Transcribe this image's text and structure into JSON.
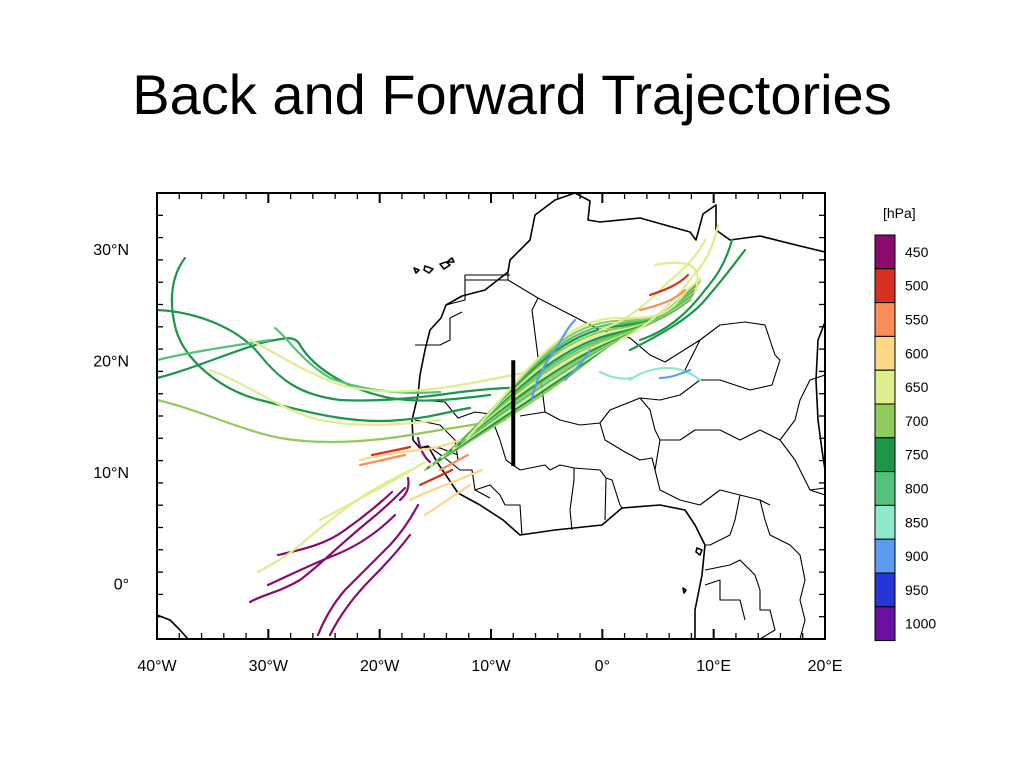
{
  "slide": {
    "title": "Back and Forward Trajectories"
  },
  "colors": {
    "450": "#8c0a6e",
    "500": "#d7301f",
    "550": "#fc8d59",
    "600": "#fdd884",
    "650": "#dfee8c",
    "700": "#8ecb5b",
    "750": "#1b9748",
    "800": "#53c27a",
    "850": "#8ee9cc",
    "900": "#5b9bf0",
    "950": "#2436d6",
    "1000": "#6a0fa1"
  },
  "map": {
    "extent": {
      "lon": [
        -40,
        20
      ],
      "lat": [
        -5,
        35
      ]
    },
    "x_ticks": [
      {
        "lon": -40,
        "label": "40°W"
      },
      {
        "lon": -30,
        "label": "30°W"
      },
      {
        "lon": -20,
        "label": "20°W"
      },
      {
        "lon": -10,
        "label": "10°W"
      },
      {
        "lon": 0,
        "label": "0°"
      },
      {
        "lon": 10,
        "label": "10°E"
      },
      {
        "lon": 20,
        "label": "20°E"
      }
    ],
    "y_ticks": [
      {
        "lat": 0,
        "label": "0°"
      },
      {
        "lat": 10,
        "label": "10°N"
      },
      {
        "lat": 20,
        "label": "20°N"
      },
      {
        "lat": 30,
        "label": "30°N"
      }
    ],
    "section_line": {
      "lon": -8,
      "lat": [
        10.5,
        20
      ]
    },
    "legend": {
      "title": "[hPa]",
      "levels": [
        {
          "value": "450",
          "label": "450"
        },
        {
          "value": "500",
          "label": "500"
        },
        {
          "value": "550",
          "label": "550"
        },
        {
          "value": "600",
          "label": "600"
        },
        {
          "value": "650",
          "label": "650"
        },
        {
          "value": "700",
          "label": "700"
        },
        {
          "value": "750",
          "label": "750"
        },
        {
          "value": "800",
          "label": "800"
        },
        {
          "value": "850",
          "label": "850"
        },
        {
          "value": "900",
          "label": "900"
        },
        {
          "value": "950",
          "label": "950"
        },
        {
          "value": "1000",
          "label": "1000"
        }
      ]
    }
  }
}
